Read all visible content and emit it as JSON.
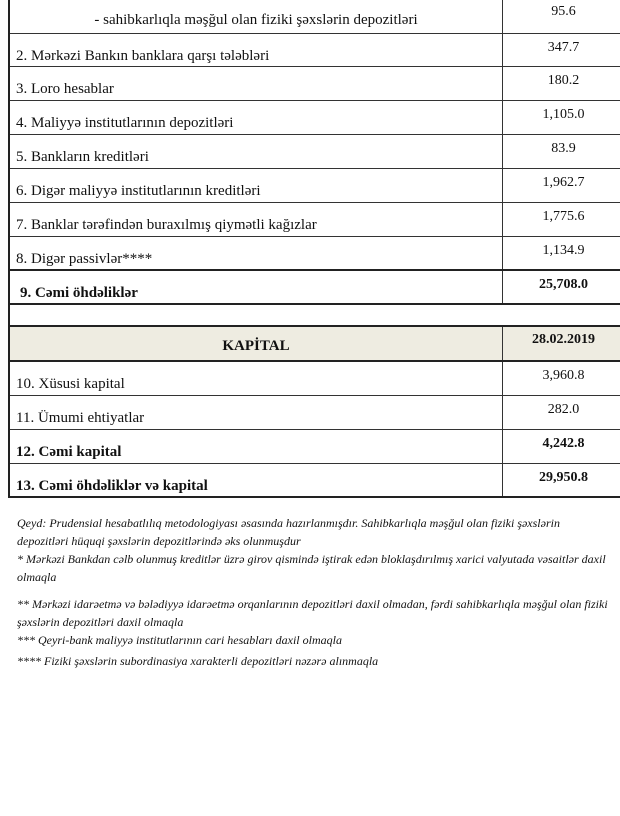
{
  "liabilities": [
    {
      "label": "- sahibkarlıqla məşğul olan fiziki şəxslərin depozitləri",
      "value": "95.6"
    },
    {
      "label": "2. Mərkəzi Bankın banklara qarşı tələbləri",
      "value": "347.7"
    },
    {
      "label": "3. Loro hesablar",
      "value": "180.2"
    },
    {
      "label": "4. Maliyyə institutlarının  depozitləri",
      "value": "1,105.0"
    },
    {
      "label": "5. Bankların kreditləri",
      "value": "83.9"
    },
    {
      "label": "6. Digər maliyyə institutlarının kreditləri",
      "value": "1,962.7"
    },
    {
      "label": "7. Banklar tərəfindən buraxılmış qiymətli kağızlar",
      "value": "1,775.6"
    },
    {
      "label": "8. Digər passivlər****",
      "value": "1,134.9"
    },
    {
      "label": "9. Cəmi öhdəliklər",
      "value": "25,708.0"
    }
  ],
  "capital_header": {
    "label": "KAPİTAL",
    "date": "28.02.2019"
  },
  "capital": [
    {
      "label": "10. Xüsusi kapital",
      "value": "3,960.8"
    },
    {
      "label": "11. Ümumi ehtiyatlar",
      "value": "282.0"
    },
    {
      "label": "12. Cəmi kapital",
      "value": "4,242.8"
    },
    {
      "label": "13. Cəmi öhdəliklər və kapital",
      "value": "29,950.8"
    }
  ],
  "notes": [
    "Qeyd: Prudensial hesabatlılıq metodologiyası əsasında hazırlanmışdır. Sahibkarlıqla məşğul olan fiziki şəxslərin depozitləri hüquqi şəxslərin depozitlərində əks olunmuşdur",
    "* Mərkəzi Bankdan cəlb olunmuş kreditlər üzrə girov qismində iştirak edən bloklaşdırılmış xarici valyutada vəsaitlər daxil olmaqla",
    "** Mərkəzi idarəetmə və bələdiyyə idarəetmə orqanlarının depozitləri daxil olmadan, fərdi sahibkarlıqla məşğul olan fiziki şəxslərin depozitləri daxil olmaqla",
    "*** Qeyri-bank maliyyə institutlarının cari hesabları daxil olmaqla",
    "**** Fiziki şəxslərin subordinasiya xarakterli depozitləri nəzərə alınmaqla"
  ]
}
